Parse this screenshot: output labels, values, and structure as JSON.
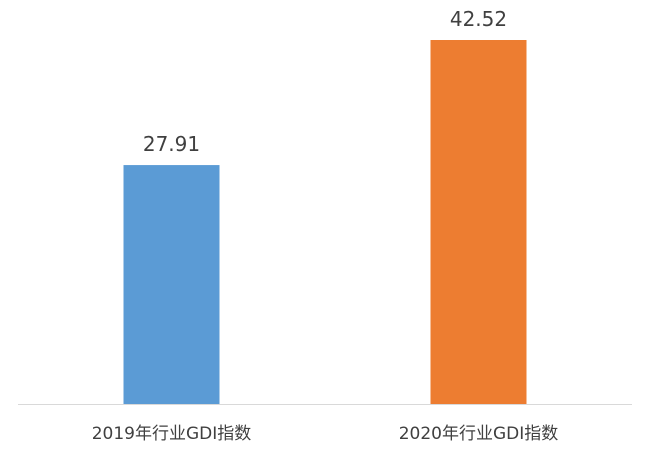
{
  "chart_data": {
    "type": "bar",
    "title": "",
    "xlabel": "",
    "ylabel": "",
    "categories": [
      "2019年行业GDI指数",
      "2020年行业GDI指数"
    ],
    "values": [
      27.91,
      42.52
    ],
    "value_labels": [
      "27.91",
      "42.52"
    ],
    "colors": [
      "#5b9bd5",
      "#ed7d31"
    ],
    "ylim": [
      0,
      45
    ],
    "grid": false,
    "legend": "none"
  }
}
